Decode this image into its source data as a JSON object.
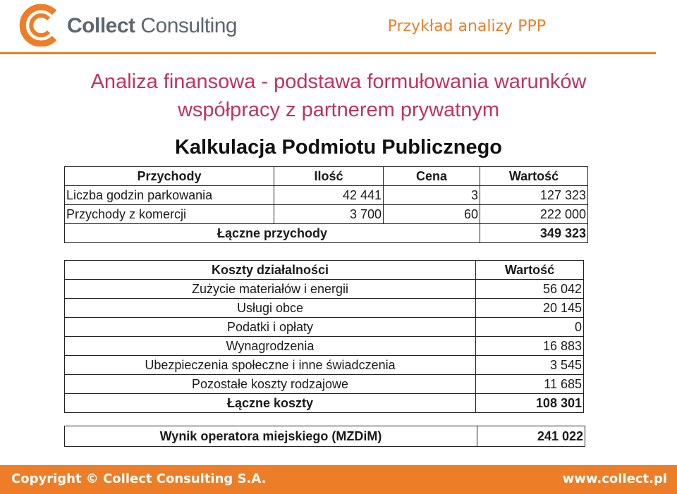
{
  "header": {
    "logo_text_bold": "Collect",
    "logo_text_light": " Consulting",
    "title": "Przykład analizy PPP",
    "accent_color": "#ee7d27"
  },
  "main_title": {
    "line1": "Analiza finansowa - podstawa formułowania warunków",
    "line2": "współpracy z partnerem prywatnym",
    "color": "#c2325e"
  },
  "section_title": "Kalkulacja Podmiotu Publicznego",
  "revenue": {
    "headers": [
      "Przychody",
      "Ilość",
      "Cena",
      "Wartość"
    ],
    "rows": [
      [
        "Liczba godzin parkowania",
        "42 441",
        "3",
        "127 323"
      ],
      [
        "Przychody z komercji",
        "3 700",
        "60",
        "222 000"
      ]
    ],
    "total_label": "Łączne przychody",
    "total_value": "349 323"
  },
  "costs": {
    "headers": [
      "Koszty działalności",
      "Wartość"
    ],
    "rows": [
      [
        "Zużycie materiałów i energii",
        "56 042"
      ],
      [
        "Usługi obce",
        "20 145"
      ],
      [
        "Podatki i opłaty",
        "0"
      ],
      [
        "Wynagrodzenia",
        "16 883"
      ],
      [
        "Ubezpieczenia społeczne i inne świadczenia",
        "3 545"
      ],
      [
        "Pozostałe koszty rodzajowe",
        "11 685"
      ]
    ],
    "total_label": "Łączne koszty",
    "total_value": "108 301"
  },
  "result": {
    "label": "Wynik operatora miejskiego (MZDiM)",
    "value": "241 022"
  },
  "footer": {
    "copyright": "Copyright © Collect Consulting S.A.",
    "url": "www.collect.pl"
  }
}
